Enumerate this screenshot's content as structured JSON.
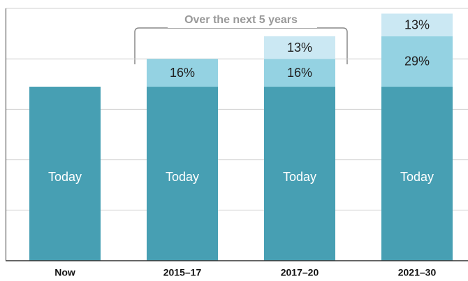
{
  "chart_data": {
    "type": "stacked_bar",
    "categories": [
      "Now",
      "2015–17",
      "2017–20",
      "2021–30"
    ],
    "series": [
      {
        "color": "#479fb3",
        "values": [
          100,
          100,
          100,
          100
        ],
        "value_labels": [
          "Today",
          "Today",
          "Today",
          "Today"
        ]
      },
      {
        "color": "#94d2e2",
        "values": [
          null,
          16,
          16,
          29
        ],
        "value_labels": [
          null,
          "16%",
          "16%",
          "29%"
        ]
      },
      {
        "color": "#cbe8f3",
        "values": [
          null,
          null,
          13,
          13
        ],
        "value_labels": [
          null,
          null,
          "13%",
          "13%"
        ]
      }
    ],
    "annotation": "Over the next 5 years",
    "ylim": [
      0,
      145
    ],
    "yticks": [
      0,
      29,
      58,
      87,
      116,
      145
    ],
    "grid": true
  }
}
